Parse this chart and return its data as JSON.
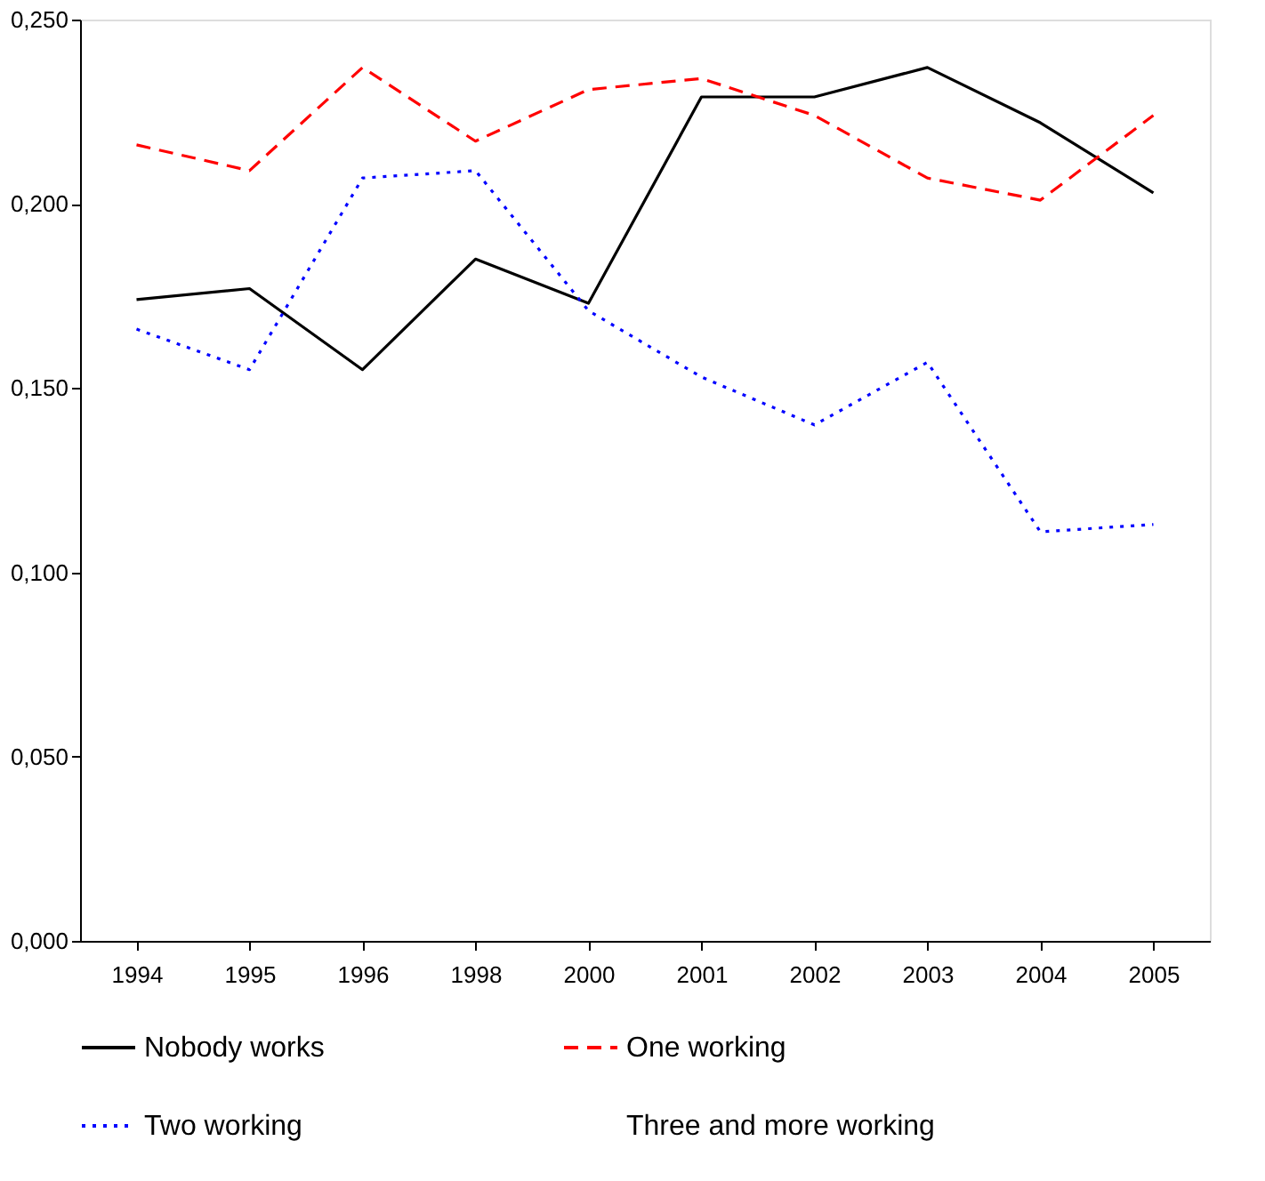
{
  "chart_data": {
    "type": "line",
    "categories": [
      "1994",
      "1995",
      "1996",
      "1998",
      "2000",
      "2001",
      "2002",
      "2003",
      "2004",
      "2005"
    ],
    "ylim": [
      0,
      0.25
    ],
    "yticks": [
      {
        "value": 0,
        "label": "0,000"
      },
      {
        "value": 0.05,
        "label": "0,050"
      },
      {
        "value": 0.1,
        "label": "0,100"
      },
      {
        "value": 0.15,
        "label": "0,150"
      },
      {
        "value": 0.2,
        "label": "0,200"
      },
      {
        "value": 0.25,
        "label": "0,250"
      }
    ],
    "grid": false,
    "legend": "bottom",
    "marker": "none",
    "series": [
      {
        "name": "Nobody works",
        "color": "#000000",
        "line_style": "solid",
        "values": [
          0.174,
          0.177,
          0.155,
          0.185,
          0.173,
          0.229,
          0.229,
          0.237,
          0.222,
          0.203
        ]
      },
      {
        "name": "One working",
        "color": "#ff0000",
        "line_style": "dashed",
        "values": [
          0.216,
          0.209,
          0.237,
          0.217,
          0.231,
          0.234,
          0.224,
          0.207,
          0.201,
          0.224
        ]
      },
      {
        "name": "Two working",
        "color": "#0000ff",
        "line_style": "dotted",
        "values": [
          0.166,
          0.155,
          0.207,
          0.209,
          0.171,
          0.153,
          0.14,
          0.157,
          0.111,
          0.113
        ]
      },
      {
        "name": "Three and more working",
        "line_style": "solid",
        "values": [
          null,
          null,
          null,
          null,
          null,
          null,
          null,
          null,
          null,
          null
        ]
      }
    ]
  }
}
